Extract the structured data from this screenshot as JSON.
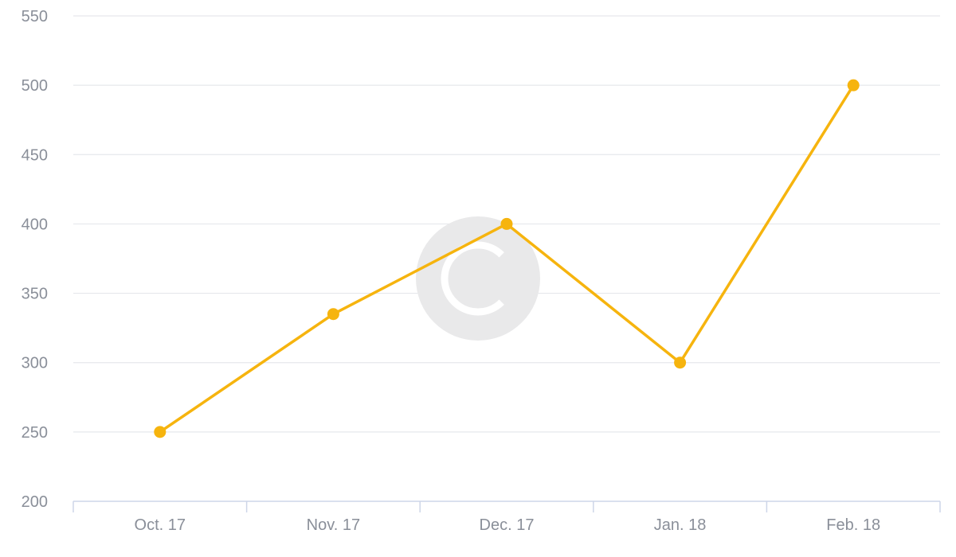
{
  "chart_data": {
    "type": "line",
    "categories": [
      "Oct. 17",
      "Nov. 17",
      "Dec. 17",
      "Jan. 18",
      "Feb. 18"
    ],
    "series": [
      {
        "values": [
          250,
          335,
          400,
          300,
          500
        ],
        "color": "#f6b40e"
      }
    ],
    "ylim": [
      200,
      550
    ],
    "yticks": [
      200,
      250,
      300,
      350,
      400,
      450,
      500,
      550
    ],
    "grid": true,
    "legend": "none",
    "watermark": "copyright-symbol"
  },
  "colors": {
    "grid": "#e6e8ec",
    "axis": "#cdd6e8",
    "tick_text": "#8a8f99",
    "watermark": "#e9e9ea"
  }
}
